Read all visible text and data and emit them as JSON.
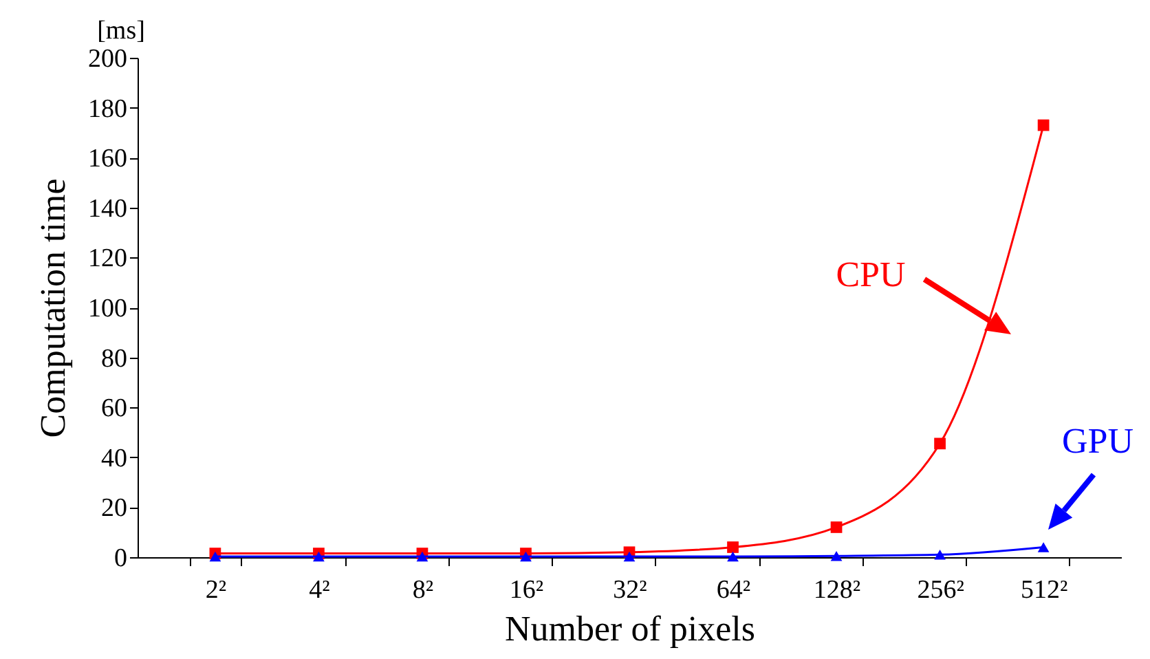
{
  "chart_data": {
    "type": "line",
    "xlabel": "Number of pixels",
    "ylabel": "Computation time",
    "annotations": [
      "[ms]"
    ],
    "categories": [
      "2²",
      "4²",
      "8²",
      "16²",
      "32²",
      "64²",
      "128²",
      "256²",
      "512²"
    ],
    "series": [
      {
        "name": "CPU",
        "color": "#ff0000",
        "marker": "square",
        "values": [
          1.5,
          1.5,
          1.5,
          1.5,
          2,
          4,
          12,
          45.5,
          173
        ]
      },
      {
        "name": "GPU",
        "color": "#0000ff",
        "marker": "triangle",
        "values": [
          0.3,
          0.3,
          0.3,
          0.3,
          0.3,
          0.3,
          0.5,
          1,
          4
        ]
      }
    ],
    "ylim": [
      0,
      200
    ],
    "yticks": [
      0,
      20,
      40,
      60,
      80,
      100,
      120,
      140,
      160,
      180,
      200
    ],
    "grid": false,
    "line_style": "solid"
  }
}
